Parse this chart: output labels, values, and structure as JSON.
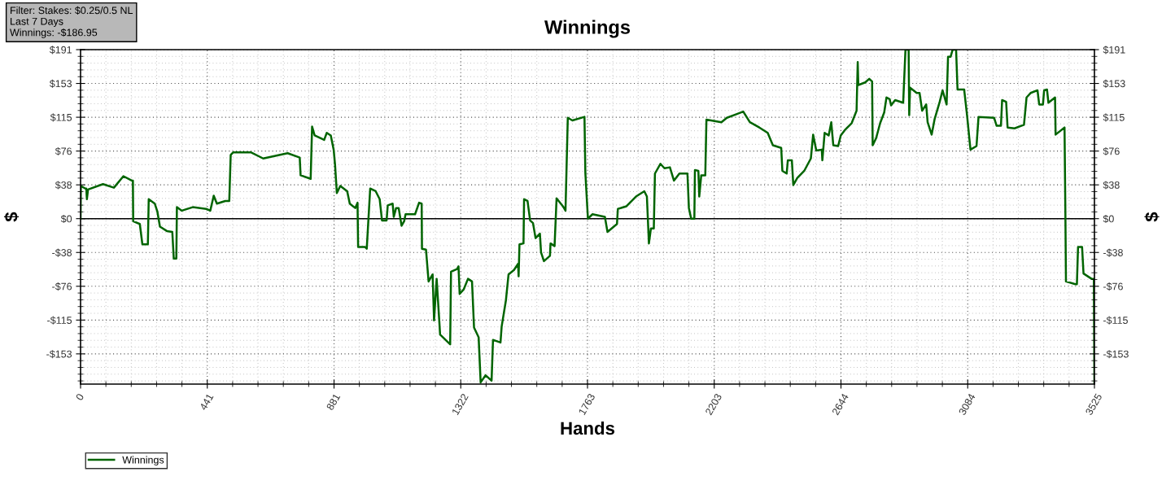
{
  "chart_data": {
    "type": "line",
    "title": "Winnings",
    "xlabel": "Hands",
    "ylabel": "$",
    "y2label": "$",
    "annotations": [
      "Filter: Stakes: $0.25/0.5 NL\nLast 7 Days\nWinnings: -$186.95"
    ],
    "xlim": [
      0,
      3525
    ],
    "xticks": [
      0,
      {
        "value": 440.625,
        "label": "441"
      },
      {
        "value": 881.25,
        "label": "881"
      },
      {
        "value": 1321.875,
        "label": "1322"
      },
      {
        "value": 1762.5,
        "label": "1763"
      },
      {
        "value": 2203.125,
        "label": "2203"
      },
      {
        "value": 2643.75,
        "label": "2644"
      },
      {
        "value": 3084.375,
        "label": "3084"
      },
      3525
    ],
    "ylim": [
      -186.95,
      191
    ],
    "yticks": [
      {
        "value": -152.8,
        "label": "-$153"
      },
      {
        "value": -114.6,
        "label": "-$115"
      },
      {
        "value": -76.4,
        "label": "-$76"
      },
      {
        "value": -38.2,
        "label": "-$38"
      },
      {
        "value": 0,
        "label": "$0"
      },
      {
        "value": 38.2,
        "label": "$38"
      },
      {
        "value": 76.4,
        "label": "$76"
      },
      {
        "value": 114.6,
        "label": "$115"
      },
      {
        "value": 152.8,
        "label": "$153"
      },
      {
        "value": 191,
        "label": "$191"
      }
    ],
    "y2lim": [
      -186.95,
      191
    ],
    "y2ticks": [
      {
        "value": -152.8,
        "label": "-$153"
      },
      {
        "value": -114.6,
        "label": "-$115"
      },
      {
        "value": -76.4,
        "label": "-$76"
      },
      {
        "value": -38.2,
        "label": "-$38"
      },
      {
        "value": 0,
        "label": "$0"
      },
      {
        "value": 38.2,
        "label": "$38"
      },
      {
        "value": 76.4,
        "label": "$76"
      },
      {
        "value": 114.6,
        "label": "$115"
      },
      {
        "value": 152.8,
        "label": "$153"
      },
      {
        "value": 191,
        "label": "$191"
      }
    ],
    "grid": true,
    "legend": "bottom left",
    "marker": "none",
    "line_style": "solid",
    "ref_lines": [
      {
        "axis": "y",
        "value": 0,
        "color": "#000000"
      }
    ],
    "series": [
      {
        "name": "Winnings",
        "color": "#006400",
        "x": [
          0,
          1,
          17,
          20,
          22,
          26,
          78,
          116,
          149,
          178,
          182,
          183,
          206,
          215,
          234,
          237,
          258,
          267,
          276,
          300,
          319,
          324,
          333,
          335,
          352,
          390,
          437,
          451,
          463,
          474,
          503,
          517,
          522,
          531,
          592,
          635,
          720,
          762,
          765,
          800,
          805,
          814,
          847,
          856,
          870,
          880,
          885,
          891,
          903,
          927,
          936,
          955,
          963,
          965,
          989,
          995,
          1007,
          1026,
          1040,
          1048,
          1064,
          1068,
          1085,
          1089,
          1097,
          1106,
          1116,
          1125,
          1130,
          1163,
          1177,
          1186,
          1187,
          1201,
          1210,
          1224,
          1229,
          1238,
          1248,
          1250,
          1285,
          1288,
          1309,
          1314,
          1318,
          1332,
          1347,
          1361,
          1368,
          1384,
          1391,
          1408,
          1429,
          1434,
          1460,
          1464,
          1479,
          1488,
          1507,
          1521,
          1523,
          1526,
          1540,
          1542,
          1554,
          1563,
          1573,
          1582,
          1597,
          1601,
          1611,
          1632,
          1634,
          1648,
          1655,
          1677,
          1686,
          1694,
          1710,
          1752,
          1755,
          1764,
          1780,
          1823,
          1832,
          1865,
          1868,
          1898,
          1931,
          1960,
          1969,
          1976,
          1983,
          1993,
          1997,
          2016,
          2030,
          2049,
          2063,
          2082,
          2110,
          2115,
          2123,
          2134,
          2136,
          2148,
          2151,
          2158,
          2172,
          2176,
          2228,
          2247,
          2280,
          2304,
          2327,
          2360,
          2389,
          2407,
          2436,
          2440,
          2455,
          2459,
          2473,
          2478,
          2492,
          2516,
          2539,
          2547,
          2558,
          2577,
          2579,
          2587,
          2601,
          2610,
          2617,
          2634,
          2643,
          2657,
          2681,
          2698,
          2702,
          2704,
          2728,
          2742,
          2752,
          2754,
          2766,
          2780,
          2794,
          2802,
          2813,
          2818,
          2832,
          2860,
          2868,
          2879,
          2881,
          2884,
          2907,
          2917,
          2926,
          2940,
          2945,
          2959,
          2969,
          2987,
          2997,
          3011,
          3016,
          3025,
          3032,
          3044,
          3049,
          3072,
          3082,
          3094,
          3115,
          3122,
          3176,
          3185,
          3200,
          3204,
          3218,
          3223,
          3247,
          3280,
          3289,
          3303,
          3327,
          3333,
          3346,
          3350,
          3360,
          3365,
          3388,
          3390,
          3421,
          3424,
          3426,
          3459,
          3464,
          3468,
          3482,
          3487,
          3515,
          3523,
          3525
        ],
        "values": [
          0,
          37,
          34,
          34,
          22,
          33,
          39,
          35,
          48,
          43,
          43,
          -3,
          -6,
          -29,
          -29,
          22,
          17,
          8,
          -9,
          -14,
          -15,
          -45,
          -45,
          13,
          9,
          13,
          11,
          9,
          26,
          17,
          20,
          20,
          72,
          75,
          75,
          68,
          74,
          69,
          49,
          45,
          104,
          94,
          89,
          97,
          94,
          78,
          60,
          29,
          37,
          31,
          17,
          12,
          18,
          -32,
          -32,
          -34,
          34,
          31,
          22,
          -2,
          -2,
          15,
          17,
          2,
          12,
          12,
          -8,
          -3,
          5,
          5,
          18,
          17,
          -34,
          -35,
          -71,
          -63,
          -115,
          -68,
          -120,
          -131,
          -142,
          -60,
          -57,
          -54,
          -85,
          -80,
          -68,
          -71,
          -123,
          -134,
          -185,
          -177,
          -183,
          -137,
          -140,
          -122,
          -92,
          -63,
          -58,
          -51,
          -65,
          -29,
          -28,
          22,
          20,
          -2,
          -5,
          -22,
          -17,
          -38,
          -48,
          -42,
          -28,
          -31,
          23,
          14,
          9,
          114,
          111,
          115,
          52,
          0,
          5,
          2,
          -15,
          -6,
          11,
          14,
          25,
          31,
          25,
          -28,
          -11,
          -11,
          51,
          62,
          57,
          58,
          43,
          51,
          51,
          12,
          0,
          0,
          55,
          54,
          25,
          49,
          49,
          112,
          109,
          114,
          118,
          121,
          109,
          103,
          97,
          83,
          80,
          54,
          51,
          66,
          66,
          38,
          46,
          54,
          68,
          95,
          77,
          78,
          66,
          97,
          94,
          109,
          83,
          82,
          94,
          100,
          108,
          122,
          177,
          151,
          154,
          158,
          155,
          83,
          91,
          108,
          120,
          137,
          135,
          128,
          134,
          131,
          191,
          191,
          117,
          148,
          142,
          142,
          122,
          129,
          109,
          95,
          112,
          132,
          145,
          129,
          183,
          183,
          191,
          191,
          146,
          146,
          117,
          78,
          82,
          115,
          114,
          105,
          105,
          134,
          132,
          103,
          102,
          106,
          137,
          142,
          145,
          129,
          129,
          145,
          146,
          131,
          137,
          95,
          103,
          5,
          -71,
          -74,
          -74,
          -32,
          -32,
          -62,
          -68,
          -68,
          -186.95
        ]
      }
    ]
  }
}
